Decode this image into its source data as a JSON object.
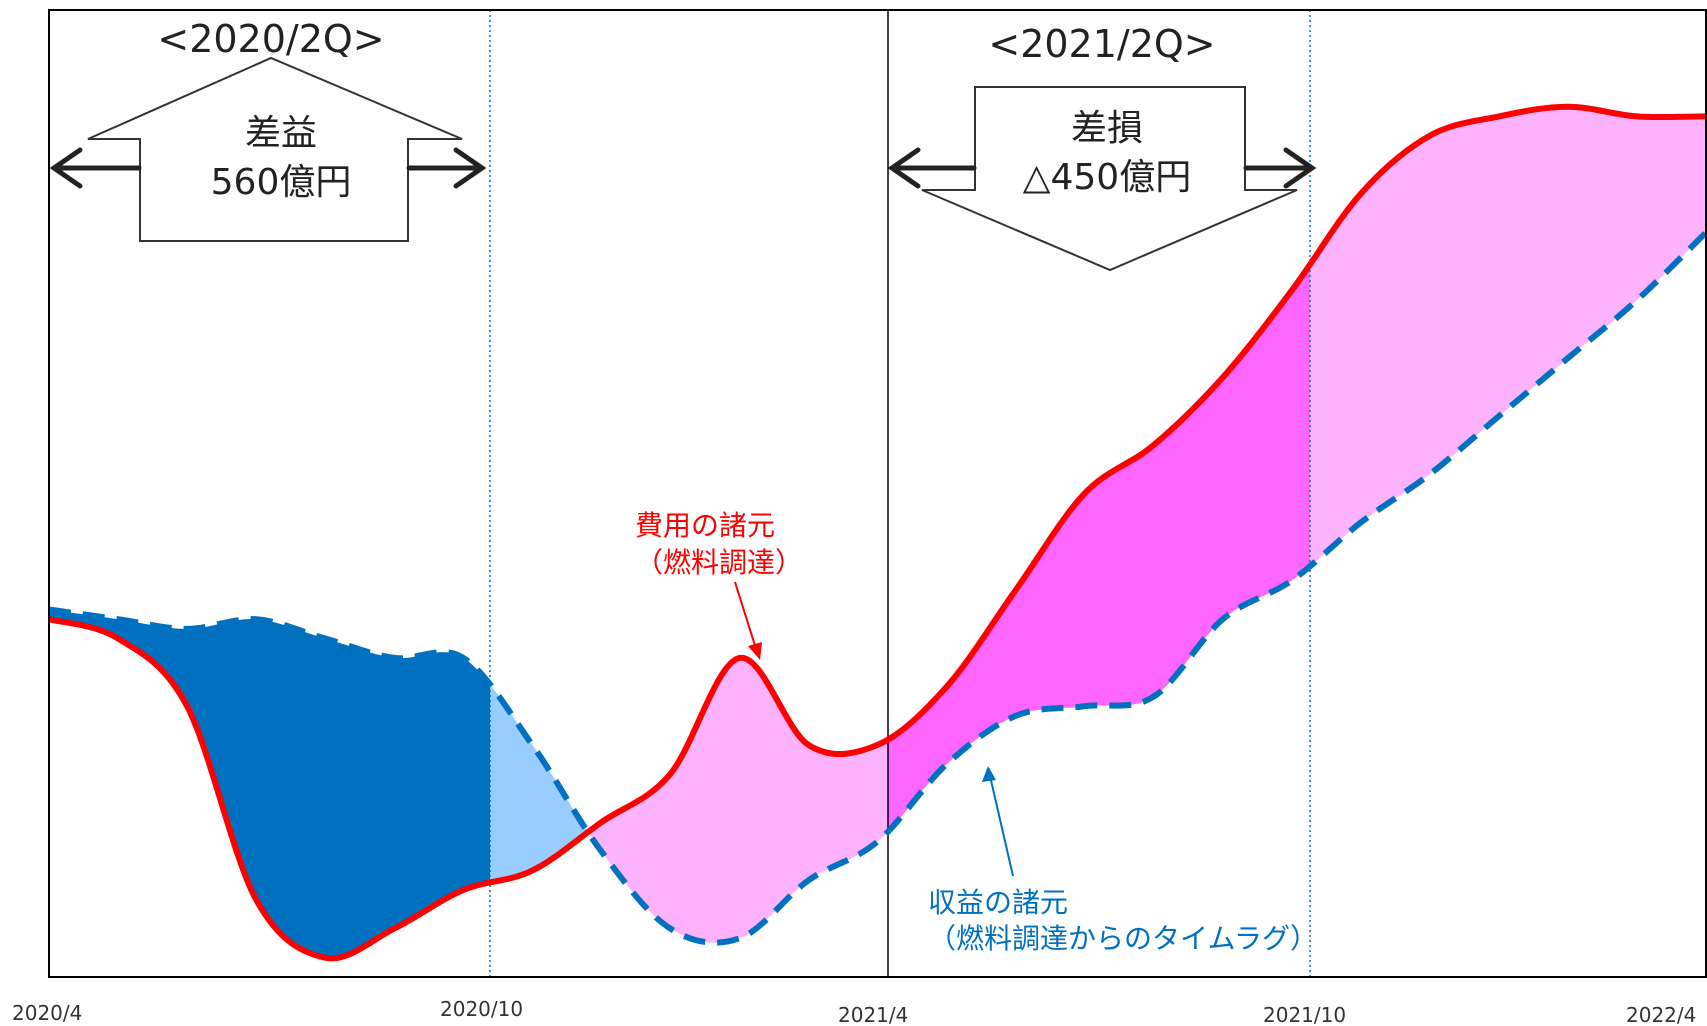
{
  "chart_data": {
    "type": "line",
    "title": "",
    "xlabel": "",
    "ylabel": "",
    "x_ticks": [
      "2020/4",
      "2020/10",
      "2021/4",
      "2021/10",
      "2022/4"
    ],
    "x_range": [
      "2020/4",
      "2022/4"
    ],
    "y_axis_ticks_visible": false,
    "grid": false,
    "series": [
      {
        "name": "費用の諸元（燃料調達）",
        "style": "solid",
        "color": "#ff0000",
        "x": [
          "2020/4",
          "2020/5",
          "2020/6",
          "2020/7",
          "2020/8",
          "2020/9",
          "2020/10",
          "2020/11",
          "2020/12",
          "2021/1",
          "2021/2",
          "2021/3",
          "2021/4",
          "2021/5",
          "2021/6",
          "2021/7",
          "2021/8",
          "2021/9",
          "2021/10",
          "2021/11",
          "2021/12",
          "2022/1",
          "2022/2",
          "2022/3",
          "2022/4"
        ],
        "values": [
          0.37,
          0.35,
          0.28,
          0.08,
          0.02,
          0.05,
          0.09,
          0.11,
          0.16,
          0.21,
          0.33,
          0.24,
          0.24,
          0.3,
          0.4,
          0.5,
          0.55,
          0.62,
          0.71,
          0.81,
          0.87,
          0.89,
          0.9,
          0.89,
          0.89
        ]
      },
      {
        "name": "収益の諸元（燃料調達からのタイムラグ）",
        "style": "dashed",
        "color": "#0070c0",
        "x": [
          "2020/4",
          "2020/5",
          "2020/6",
          "2020/7",
          "2020/8",
          "2020/9",
          "2020/10",
          "2020/11",
          "2020/12",
          "2021/1",
          "2021/2",
          "2021/3",
          "2021/4",
          "2021/5",
          "2021/6",
          "2021/7",
          "2021/8",
          "2021/9",
          "2021/10",
          "2021/11",
          "2021/12",
          "2022/1",
          "2022/2",
          "2022/3",
          "2022/4"
        ],
        "values": [
          0.38,
          0.37,
          0.36,
          0.37,
          0.35,
          0.33,
          0.33,
          0.24,
          0.13,
          0.05,
          0.04,
          0.1,
          0.14,
          0.22,
          0.27,
          0.28,
          0.29,
          0.37,
          0.41,
          0.47,
          0.52,
          0.58,
          0.64,
          0.7,
          0.77
        ]
      }
    ],
    "annotations": {
      "period_2020": {
        "label": "<2020/2Q>",
        "arrow_text_line1": "差益",
        "arrow_text_line2": "560億円"
      },
      "period_2021": {
        "label": "<2021/2Q>",
        "arrow_text_line1": "差損",
        "arrow_text_line2": "△450億円"
      },
      "cost_label_line1": "費用の諸元",
      "cost_label_line2": "（燃料調達）",
      "revenue_label_line1": "収益の諸元",
      "revenue_label_line2": "（燃料調達からのタイムラグ）"
    },
    "colors": {
      "cost_line": "#ff0000",
      "revenue_line": "#0070c0",
      "gain_fill_dark": "#0070c0",
      "gain_fill_light": "#99ccff",
      "loss_fill_dark": "#ff66ff",
      "loss_fill_light": "#ffb3ff",
      "divider_dotted": "#0070c0",
      "divider_solid": "#000000"
    }
  }
}
